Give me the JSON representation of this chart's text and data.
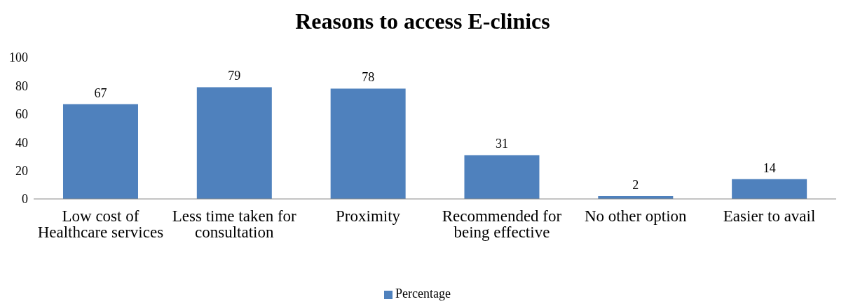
{
  "chart_data": {
    "type": "bar",
    "title": "Reasons to access E-clinics",
    "categories": [
      "Low cost of Healthcare services",
      "Less time taken for consultation",
      "Proximity",
      "Recommended for being effective",
      "No other option",
      "Easier to avail"
    ],
    "series": [
      {
        "name": "Percentage",
        "color": "#4f81bd",
        "values": [
          67,
          79,
          78,
          31,
          2,
          14
        ]
      }
    ],
    "ylim": [
      0,
      100
    ],
    "yticks": [
      0,
      20,
      40,
      60,
      80,
      100
    ],
    "legend": "bottom",
    "data_labels": true
  }
}
